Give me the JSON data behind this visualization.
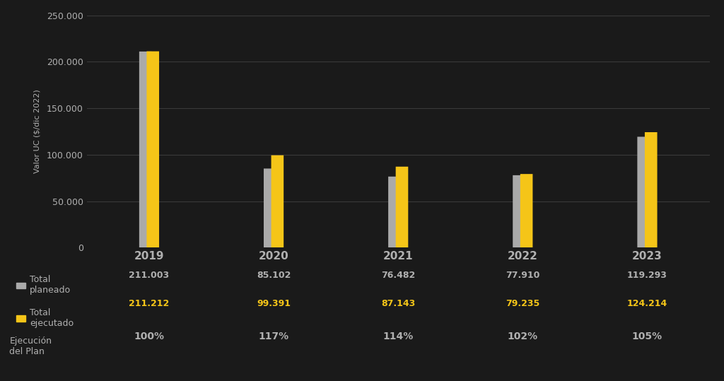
{
  "years": [
    "2019",
    "2020",
    "2021",
    "2022",
    "2023"
  ],
  "total_planeado": [
    211003,
    85102,
    76482,
    77910,
    119293
  ],
  "total_ejecutado": [
    211212,
    99391,
    87143,
    79235,
    124214
  ],
  "percentages": [
    "100%",
    "117%",
    "114%",
    "102%",
    "105%"
  ],
  "planeado_labels": [
    "211.003",
    "85.102",
    "76.482",
    "77.910",
    "119.293"
  ],
  "ejecutado_labels": [
    "211.212",
    "99.391",
    "87.143",
    "79.235",
    "124.214"
  ],
  "color_planeado": "#aaaaaa",
  "color_ejecutado": "#f5c518",
  "background_color": "#1a1a1a",
  "text_color": "#b0b0b0",
  "ylabel": "Valor UC ($/dic 2022)",
  "ylim": [
    0,
    250000
  ],
  "yticks": [
    0,
    50000,
    100000,
    150000,
    200000,
    250000
  ],
  "ytick_labels": [
    "0",
    "50.000",
    "100.000",
    "150.000",
    "200.000",
    "250.000"
  ],
  "legend_planeado": "Total\nplaneado",
  "legend_ejecutado": "Total\nejecutado",
  "legend_ejecucion": "Ejecución\ndel Plan",
  "bar_width": 0.1,
  "label_fontsize": 9,
  "tick_fontsize": 9,
  "annotation_fontsize": 9,
  "grid_color": "#3a3a3a",
  "ylabel_fontsize": 8
}
